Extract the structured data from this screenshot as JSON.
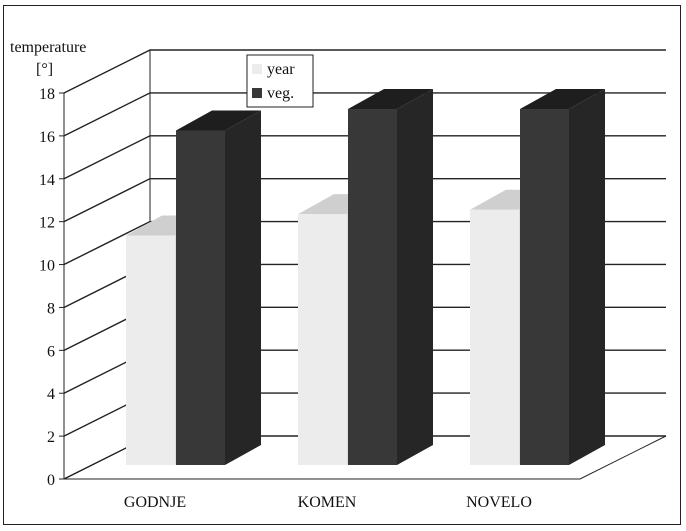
{
  "chart_data": {
    "type": "bar",
    "ylabel_line1": "temperature",
    "ylabel_line2": "[°]",
    "categories": [
      "GODNJE",
      "KOMEN",
      "NOVELO"
    ],
    "series": [
      {
        "name": "year",
        "values": [
          10.7,
          11.7,
          11.9
        ],
        "color": "#ececec",
        "top_color": "#cfcfcf",
        "side_color": "#dcdcdc"
      },
      {
        "name": "veg.",
        "values": [
          15.6,
          16.6,
          16.6
        ],
        "color": "#383838",
        "top_color": "#1e1e1e",
        "side_color": "#262626"
      }
    ],
    "ylim": [
      0,
      18
    ],
    "yticks": [
      "0",
      "2",
      "4",
      "6",
      "8",
      "10",
      "12",
      "14",
      "16",
      "18"
    ],
    "grid": true,
    "legend_position": "top-center"
  }
}
